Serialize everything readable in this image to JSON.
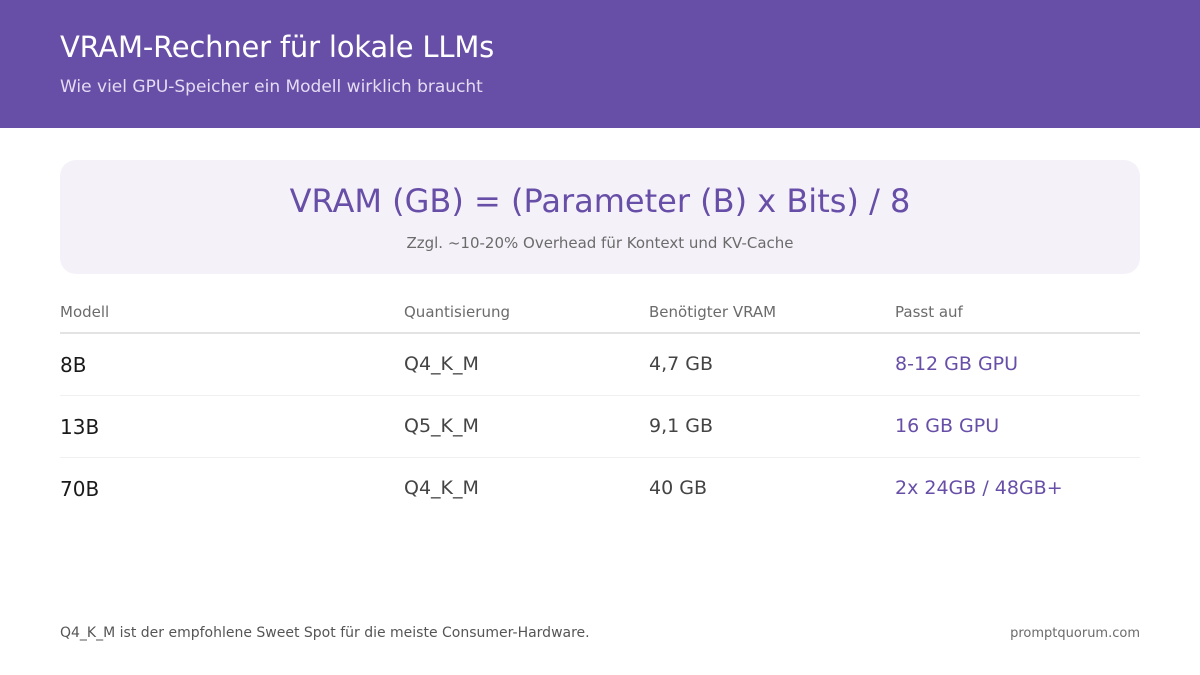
{
  "header": {
    "title": "VRAM-Rechner für lokale LLMs",
    "subtitle": "Wie viel GPU-Speicher ein Modell wirklich braucht"
  },
  "formula": {
    "text": "VRAM (GB) = (Parameter (B) x Bits) / 8",
    "note": "Zzgl. ~10-20% Overhead für Kontext und KV-Cache"
  },
  "table": {
    "headers": [
      "Modell",
      "Quantisierung",
      "Benötigter VRAM",
      "Passt auf"
    ],
    "rows": [
      [
        "8B",
        "Q4_K_M",
        "4,7 GB",
        "8-12 GB GPU"
      ],
      [
        "13B",
        "Q5_K_M",
        "9,1 GB",
        "16 GB GPU"
      ],
      [
        "70B",
        "Q4_K_M",
        "40 GB",
        "2x 24GB / 48GB+"
      ]
    ]
  },
  "footer": {
    "note": "Q4_K_M ist der empfohlene Sweet Spot für die meiste Consumer-Hardware.",
    "brand": "promptquorum.com"
  },
  "colors": {
    "accent": "#674ea7",
    "card_background": "#f5f1f9"
  }
}
